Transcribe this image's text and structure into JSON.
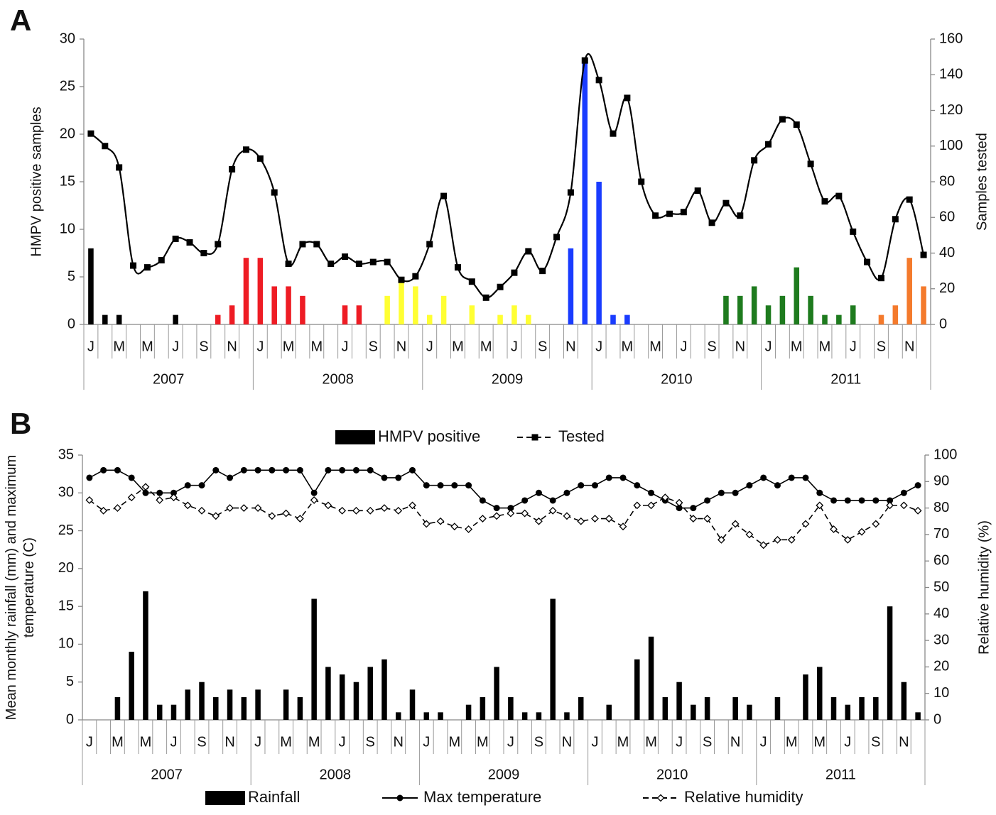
{
  "chart_data": [
    {
      "type": "combo",
      "panel": "A",
      "categories": [
        "J",
        null,
        "M",
        null,
        "M",
        null,
        "J",
        null,
        "S",
        null,
        "N",
        null,
        "J",
        null,
        "M",
        null,
        "M",
        null,
        "J",
        null,
        "S",
        null,
        "N",
        null,
        "J",
        null,
        "M",
        null,
        "M",
        null,
        "J",
        null,
        "S",
        null,
        "N",
        null,
        "J",
        null,
        "M",
        null,
        "M",
        null,
        "J",
        null,
        "S",
        null,
        "N",
        null,
        "J",
        null,
        "M",
        null,
        "M",
        null,
        "J",
        null,
        "S",
        null,
        "N",
        null
      ],
      "years": [
        "2007",
        "2008",
        "2009",
        "2010",
        "2011"
      ],
      "ylabel": "HMPV positive samples",
      "y2label": "Samples tested",
      "ylim": [
        0,
        30
      ],
      "yticks": [
        0,
        5,
        10,
        15,
        20,
        25,
        30
      ],
      "y2lim": [
        0,
        160
      ],
      "y2ticks": [
        0,
        20,
        40,
        60,
        80,
        100,
        120,
        140,
        160
      ],
      "series": [
        {
          "name": "HMPV positive",
          "type": "bar",
          "color": "#000000",
          "colors": [
            "#000000",
            "#000000",
            "#000000",
            "#000000",
            "#000000",
            "#000000",
            "#000000",
            "#000000",
            "#000000",
            "#ee1c24",
            "#ee1c24",
            "#ee1c24",
            "#ee1c24",
            "#ee1c24",
            "#ee1c24",
            "#ee1c24",
            "#ee1c24",
            "#ee1c24",
            "#ee1c24",
            "#ee1c24",
            "#ee1c24",
            "#ffff33",
            "#ffff33",
            "#ffff33",
            "#ffff33",
            "#ffff33",
            "#ffff33",
            "#ffff33",
            "#ffff33",
            "#ffff33",
            "#ffff33",
            "#ffff33",
            "#ffff33",
            "#ffff33",
            "#1a3cff",
            "#1a3cff",
            "#1a3cff",
            "#1a3cff",
            "#1a3cff",
            "#1a3cff",
            "#1a3cff",
            "#1a3cff",
            "#1a3cff",
            "#1a3cff",
            "#1a3cff",
            "#1e7b1e",
            "#1e7b1e",
            "#1e7b1e",
            "#1e7b1e",
            "#1e7b1e",
            "#1e7b1e",
            "#1e7b1e",
            "#1e7b1e",
            "#1e7b1e",
            "#1e7b1e",
            "#1e7b1e",
            "#f47a2c",
            "#f47a2c",
            "#f47a2c",
            "#f47a2c"
          ],
          "values": [
            8,
            1,
            1,
            0,
            0,
            0,
            1,
            0,
            0,
            1,
            2,
            7,
            7,
            4,
            4,
            3,
            0,
            0,
            2,
            2,
            0,
            3,
            5,
            4,
            1,
            3,
            0,
            2,
            0,
            1,
            2,
            1,
            0,
            0,
            8,
            28,
            15,
            1,
            1,
            0,
            0,
            0,
            0,
            0,
            0,
            3,
            3,
            4,
            2,
            3,
            6,
            3,
            1,
            1,
            2,
            0,
            1,
            2,
            7,
            4
          ]
        },
        {
          "name": "Tested",
          "type": "line",
          "axis": "y2",
          "color": "#000000",
          "marker": "square",
          "smooth": true,
          "legend_dashed": true,
          "values": [
            107,
            100,
            88,
            33,
            32,
            36,
            48,
            46,
            40,
            45,
            87,
            98,
            93,
            74,
            34,
            45,
            45,
            34,
            38,
            34,
            35,
            35,
            25,
            27,
            45,
            72,
            32,
            24,
            15,
            21,
            29,
            41,
            30,
            49,
            74,
            148,
            137,
            107,
            127,
            80,
            61,
            62,
            63,
            75,
            57,
            68,
            61,
            92,
            101,
            115,
            112,
            90,
            69,
            72,
            52,
            35,
            26,
            59,
            70,
            39
          ]
        }
      ]
    },
    {
      "type": "combo",
      "panel": "B",
      "categories": [
        "J",
        null,
        "M",
        null,
        "M",
        null,
        "J",
        null,
        "S",
        null,
        "N",
        null,
        "J",
        null,
        "M",
        null,
        "M",
        null,
        "J",
        null,
        "S",
        null,
        "N",
        null,
        "J",
        null,
        "M",
        null,
        "M",
        null,
        "J",
        null,
        "S",
        null,
        "N",
        null,
        "J",
        null,
        "M",
        null,
        "M",
        null,
        "J",
        null,
        "S",
        null,
        "N",
        null,
        "J",
        null,
        "M",
        null,
        "M",
        null,
        "J",
        null,
        "S",
        null,
        "N",
        null
      ],
      "years": [
        "2007",
        "2008",
        "2009",
        "2010",
        "2011"
      ],
      "ylabel": "Mean monthly rainfall (mm) and maximum temperature (C)",
      "y2label": "Relative humidity (%)",
      "ylim": [
        0,
        35
      ],
      "yticks": [
        0,
        5,
        10,
        15,
        20,
        25,
        30,
        35
      ],
      "y2lim": [
        0,
        100
      ],
      "y2ticks": [
        0,
        10,
        20,
        30,
        40,
        50,
        60,
        70,
        80,
        90,
        100
      ],
      "series": [
        {
          "name": "Rainfall",
          "type": "bar",
          "color": "#000000",
          "values": [
            0,
            0,
            3,
            9,
            17,
            2,
            2,
            4,
            5,
            3,
            4,
            3,
            4,
            0,
            4,
            3,
            16,
            7,
            6,
            5,
            7,
            8,
            1,
            4,
            1,
            1,
            0,
            2,
            3,
            7,
            3,
            1,
            1,
            16,
            1,
            3,
            0,
            2,
            0,
            8,
            11,
            3,
            5,
            2,
            3,
            0,
            3,
            2,
            0,
            3,
            0,
            6,
            7,
            3,
            2,
            3,
            3,
            15,
            5,
            1
          ]
        },
        {
          "name": "Max temperature",
          "type": "line",
          "color": "#000000",
          "marker": "circle",
          "values": [
            32,
            33,
            33,
            32,
            30,
            30,
            30,
            31,
            31,
            33,
            32,
            33,
            33,
            33,
            33,
            33,
            30,
            33,
            33,
            33,
            33,
            32,
            32,
            33,
            31,
            31,
            31,
            31,
            29,
            28,
            28,
            29,
            30,
            29,
            30,
            31,
            31,
            32,
            32,
            31,
            30,
            29,
            28,
            28,
            29,
            30,
            30,
            31,
            32,
            31,
            32,
            32,
            30,
            29,
            29,
            29,
            29,
            29,
            30,
            31
          ]
        },
        {
          "name": "Relative humidity",
          "type": "line",
          "axis": "y2",
          "color": "#000000",
          "marker": "diamond",
          "dashed": true,
          "values": [
            83,
            79,
            80,
            84,
            88,
            83,
            84,
            81,
            79,
            77,
            80,
            80,
            80,
            77,
            78,
            76,
            83,
            81,
            79,
            79,
            79,
            80,
            79,
            81,
            74,
            75,
            73,
            72,
            76,
            77,
            78,
            78,
            75,
            79,
            77,
            75,
            76,
            76,
            73,
            81,
            81,
            84,
            82,
            76,
            76,
            68,
            74,
            70,
            66,
            68,
            68,
            74,
            81,
            72,
            68,
            71,
            74,
            81,
            81,
            79
          ]
        }
      ]
    }
  ]
}
